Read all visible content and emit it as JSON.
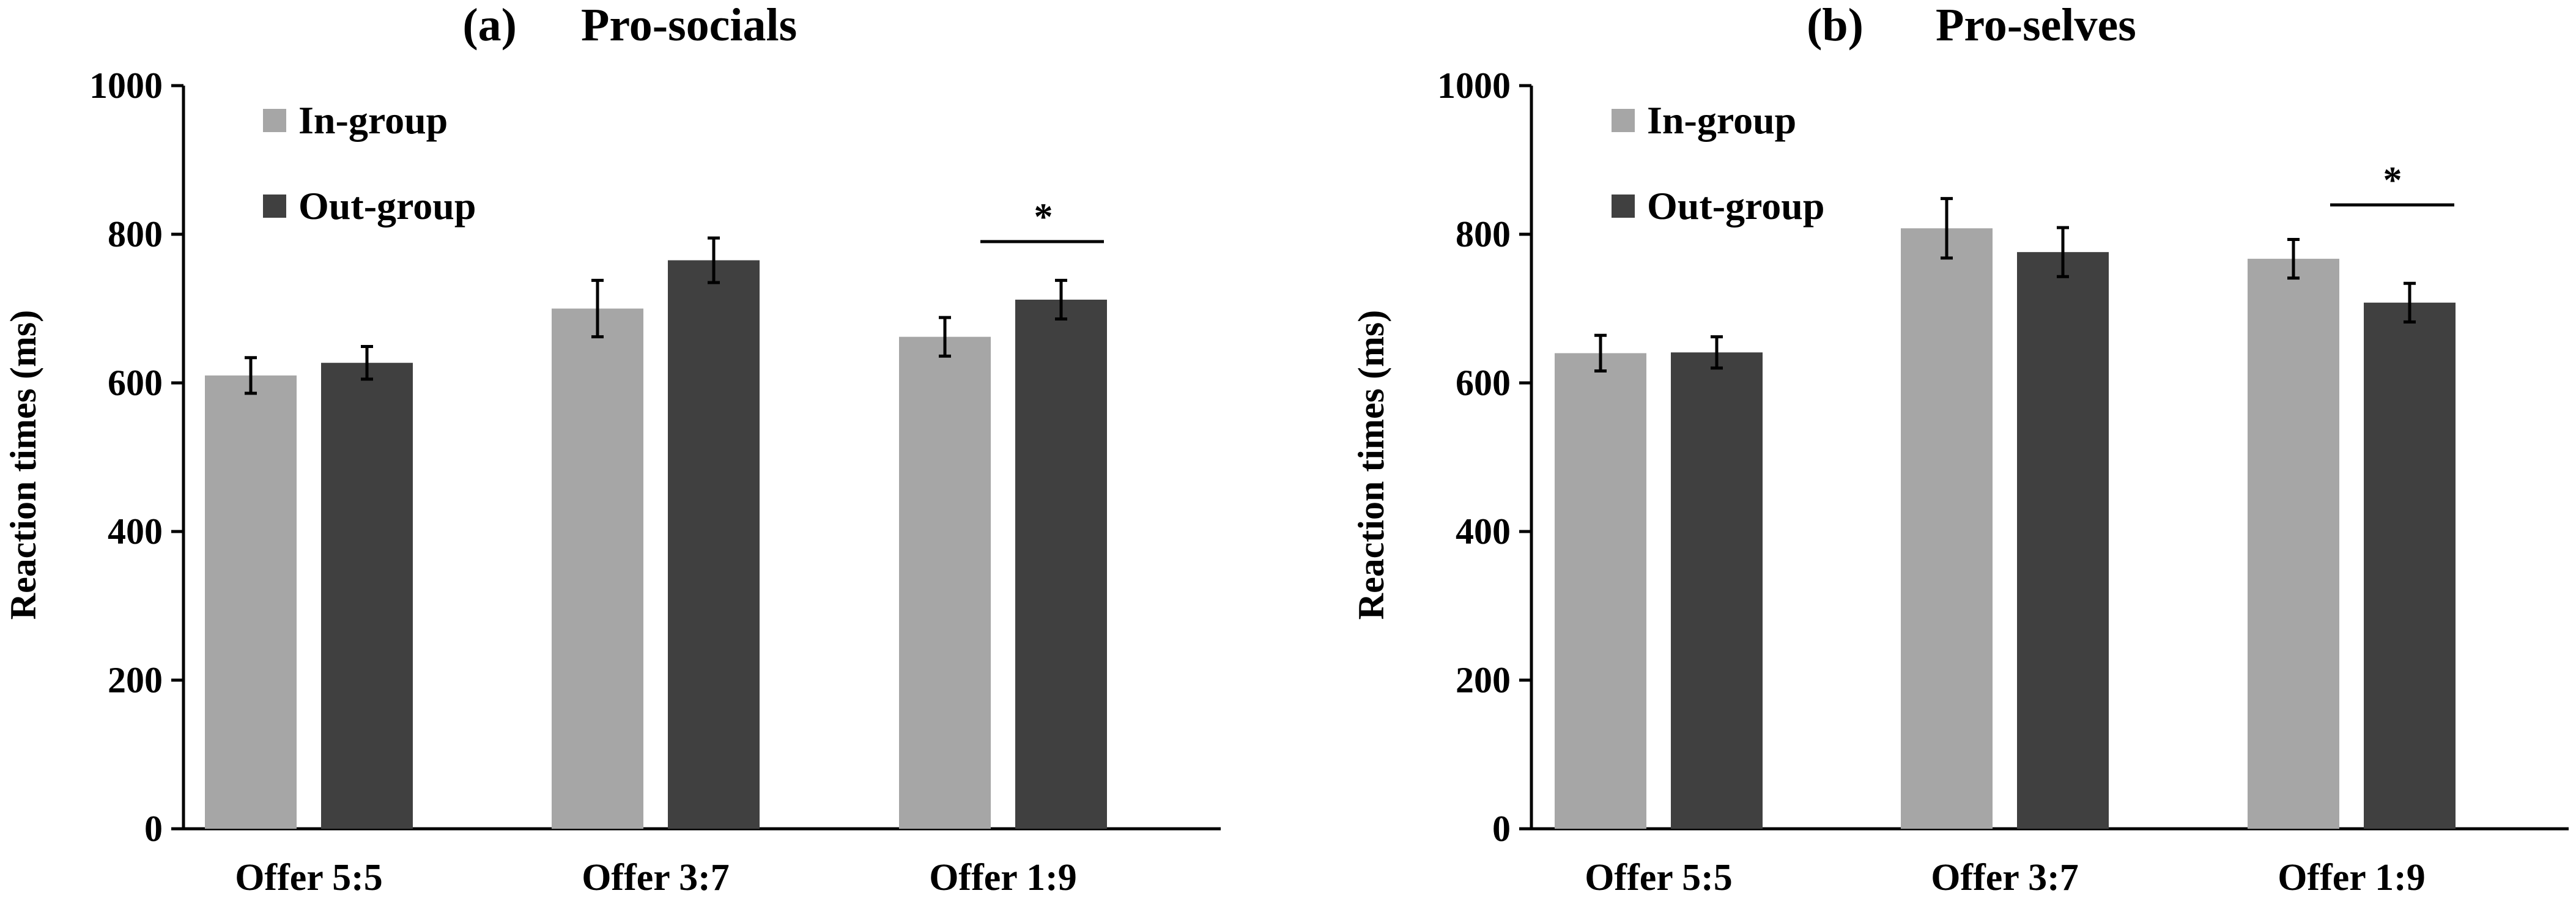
{
  "chart_data": [
    {
      "type": "bar",
      "panel_label": "(a)",
      "title": "Pro-socials",
      "ylabel": "Reaction times (ms)",
      "xlabel": "",
      "ylim": [
        0,
        1000
      ],
      "yticks": [
        0,
        200,
        400,
        600,
        800,
        1000
      ],
      "grid": false,
      "legend_position": "top-left",
      "categories": [
        "Offer 5:5",
        "Offer 3:7",
        "Offer 1:9"
      ],
      "series": [
        {
          "name": "In-group",
          "color": "#a6a6a6",
          "values": [
            610,
            700,
            662
          ],
          "errors": [
            24,
            38,
            26
          ]
        },
        {
          "name": "Out-group",
          "color": "#404040",
          "values": [
            627,
            765,
            712
          ],
          "errors": [
            22,
            30,
            26
          ]
        }
      ],
      "significance": [
        {
          "category_index": 2,
          "label": "*"
        }
      ]
    },
    {
      "type": "bar",
      "panel_label": "(b)",
      "title": "Pro-selves",
      "ylabel": "Reaction times (ms)",
      "xlabel": "",
      "ylim": [
        0,
        1000
      ],
      "yticks": [
        0,
        200,
        400,
        600,
        800,
        1000
      ],
      "grid": false,
      "legend_position": "top-left",
      "categories": [
        "Offer 5:5",
        "Offer 3:7",
        "Offer 1:9"
      ],
      "series": [
        {
          "name": "In-group",
          "color": "#a6a6a6",
          "values": [
            640,
            808,
            767
          ],
          "errors": [
            24,
            40,
            26
          ]
        },
        {
          "name": "Out-group",
          "color": "#404040",
          "values": [
            641,
            776,
            708
          ],
          "errors": [
            21,
            33,
            26
          ]
        }
      ],
      "significance": [
        {
          "category_index": 2,
          "label": "*"
        }
      ]
    }
  ]
}
